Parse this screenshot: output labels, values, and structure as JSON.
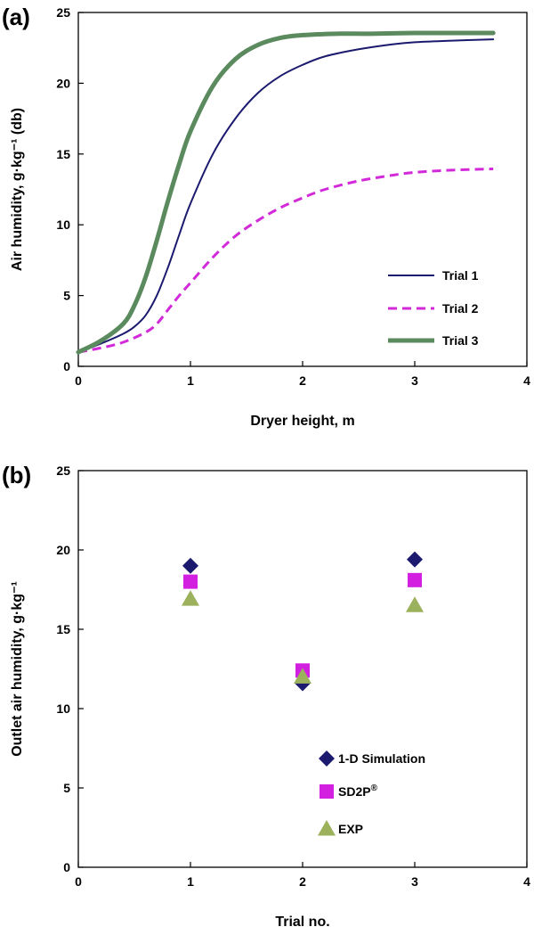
{
  "chart_data": [
    {
      "type": "line",
      "panel_label": "(a)",
      "xlabel": "Dryer height, m",
      "ylabel": "Air humidity, g·kg⁻¹ (db)",
      "xlim": [
        0,
        4
      ],
      "ylim": [
        0,
        25
      ],
      "xticks": [
        "0",
        "1",
        "2",
        "3",
        "4"
      ],
      "yticks": [
        "0",
        "5",
        "10",
        "15",
        "20",
        "25"
      ],
      "grid": false,
      "legend_position": "bottom-right",
      "series": [
        {
          "name": "Trial 1",
          "color": "#1c1a6e",
          "style": "solid",
          "x": [
            0,
            0.2,
            0.4,
            0.5,
            0.6,
            0.7,
            0.8,
            0.9,
            1.0,
            1.2,
            1.4,
            1.6,
            1.8,
            2.0,
            2.2,
            2.5,
            2.8,
            3.0,
            3.3,
            3.7
          ],
          "y": [
            1.0,
            1.6,
            2.3,
            2.8,
            3.6,
            5.0,
            7.0,
            9.3,
            11.5,
            15.0,
            17.5,
            19.3,
            20.5,
            21.3,
            21.9,
            22.4,
            22.75,
            22.9,
            23.0,
            23.1
          ]
        },
        {
          "name": "Trial 2",
          "color": "#d22ad8",
          "style": "dashed",
          "x": [
            0,
            0.2,
            0.4,
            0.6,
            0.7,
            0.8,
            0.9,
            1.0,
            1.2,
            1.4,
            1.6,
            1.8,
            2.0,
            2.2,
            2.5,
            2.8,
            3.0,
            3.3,
            3.7
          ],
          "y": [
            1.0,
            1.3,
            1.7,
            2.4,
            3.0,
            4.0,
            5.0,
            5.9,
            7.7,
            9.2,
            10.3,
            11.2,
            11.9,
            12.5,
            13.1,
            13.5,
            13.7,
            13.85,
            13.95
          ]
        },
        {
          "name": "Trial 3",
          "color": "#5a8a5e",
          "style": "solid-thick",
          "x": [
            0,
            0.2,
            0.4,
            0.5,
            0.6,
            0.7,
            0.8,
            0.9,
            1.0,
            1.2,
            1.4,
            1.6,
            1.8,
            2.0,
            2.3,
            2.6,
            3.0,
            3.4,
            3.7
          ],
          "y": [
            1.0,
            1.8,
            3.0,
            4.3,
            6.3,
            8.9,
            11.7,
            14.3,
            16.6,
            19.8,
            21.7,
            22.7,
            23.2,
            23.4,
            23.5,
            23.5,
            23.55,
            23.55,
            23.55
          ]
        }
      ]
    },
    {
      "type": "scatter",
      "panel_label": "(b)",
      "xlabel": "Trial no.",
      "ylabel": "Outlet air humidity, g·kg⁻¹",
      "xlim": [
        0,
        4
      ],
      "ylim": [
        0,
        25
      ],
      "xticks": [
        "0",
        "1",
        "2",
        "3",
        "4"
      ],
      "yticks": [
        "0",
        "5",
        "10",
        "15",
        "20",
        "25"
      ],
      "grid": false,
      "legend_position": "bottom-right",
      "series": [
        {
          "name": "1-D Simulation",
          "marker": "diamond",
          "color": "#1c1a6e",
          "x": [
            1,
            2,
            3
          ],
          "y": [
            19.0,
            11.6,
            19.4
          ]
        },
        {
          "name": "SD2P",
          "name_superscript": "®",
          "marker": "square",
          "color": "#d21fe0",
          "x": [
            1,
            2,
            3
          ],
          "y": [
            18.0,
            12.4,
            18.1
          ]
        },
        {
          "name": "EXP",
          "marker": "triangle",
          "color": "#9bb15c",
          "x": [
            1,
            2,
            3
          ],
          "y": [
            16.9,
            12.0,
            16.5
          ]
        }
      ]
    }
  ]
}
